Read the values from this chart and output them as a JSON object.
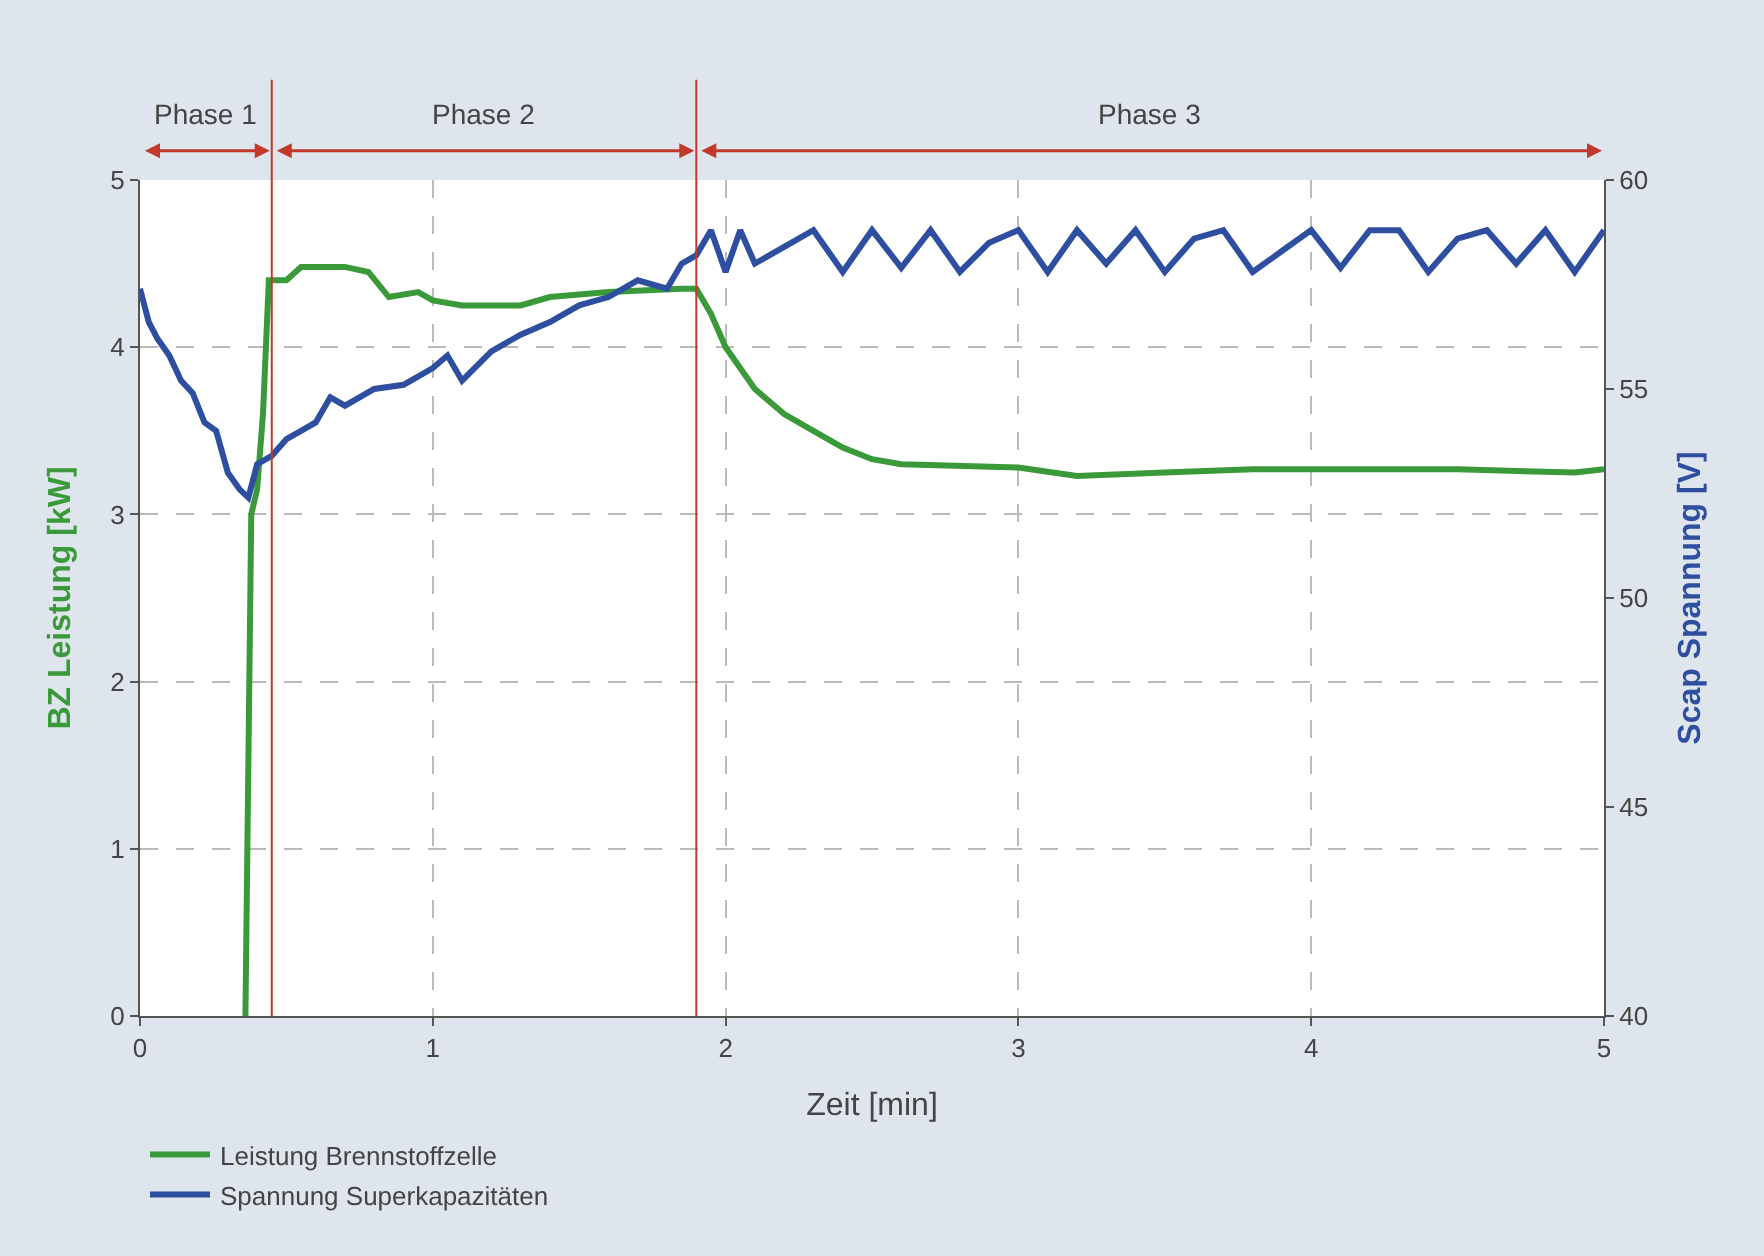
{
  "chart_data": {
    "type": "line",
    "xlabel": "Zeit [min]",
    "ylabel": "BZ Leistung [kW]",
    "y2label": "Scap Spannung [V]",
    "xlim": [
      0,
      5
    ],
    "xticks": [
      0,
      1,
      2,
      3,
      4,
      5
    ],
    "ylim": [
      0,
      5
    ],
    "yticks": [
      0,
      1,
      2,
      3,
      4,
      5
    ],
    "y2lim": [
      40,
      60
    ],
    "y2ticks": [
      40,
      45,
      50,
      55,
      60
    ],
    "grid": true,
    "legend": "bottom left",
    "line_style": "solid",
    "marker": "none",
    "series": [
      {
        "name": "Leistung Brennstoffzelle",
        "color": "#3a9a3a",
        "x": [
          0.36,
          0.37,
          0.38,
          0.4,
          0.42,
          0.44,
          0.5,
          0.55,
          0.7,
          0.78,
          0.85,
          0.95,
          1.0,
          1.1,
          1.3,
          1.4,
          1.6,
          1.85,
          1.9,
          1.95,
          2.0,
          2.1,
          2.2,
          2.3,
          2.4,
          2.5,
          2.6,
          3.0,
          3.2,
          3.5,
          3.8,
          4.0,
          4.5,
          4.9,
          5.0
        ],
        "values": [
          0,
          1.5,
          3.0,
          3.15,
          3.6,
          4.4,
          4.4,
          4.48,
          4.48,
          4.45,
          4.3,
          4.33,
          4.28,
          4.25,
          4.25,
          4.3,
          4.33,
          4.35,
          4.35,
          4.2,
          4.0,
          3.75,
          3.6,
          3.5,
          3.4,
          3.33,
          3.3,
          3.28,
          3.23,
          3.25,
          3.27,
          3.27,
          3.27,
          3.25,
          3.27
        ]
      },
      {
        "name": "Spannung Superkapazitäten",
        "color": "#2e4fa0",
        "axis": "y2",
        "x": [
          0,
          0.03,
          0.06,
          0.1,
          0.14,
          0.18,
          0.22,
          0.26,
          0.3,
          0.34,
          0.37,
          0.4,
          0.45,
          0.5,
          0.55,
          0.6,
          0.65,
          0.7,
          0.8,
          0.9,
          1.0,
          1.05,
          1.1,
          1.2,
          1.3,
          1.4,
          1.5,
          1.6,
          1.7,
          1.8,
          1.85,
          1.9,
          1.95,
          2.0,
          2.05,
          2.1,
          2.2,
          2.3,
          2.4,
          2.5,
          2.6,
          2.7,
          2.8,
          2.9,
          3.0,
          3.1,
          3.2,
          3.3,
          3.4,
          3.5,
          3.6,
          3.7,
          3.8,
          3.9,
          4.0,
          4.1,
          4.2,
          4.3,
          4.4,
          4.5,
          4.6,
          4.7,
          4.8,
          4.9,
          5.0
        ],
        "values": [
          57.4,
          56.6,
          56.2,
          55.8,
          55.2,
          54.9,
          54.2,
          54.0,
          53.0,
          52.6,
          52.4,
          53.2,
          53.4,
          53.8,
          54.0,
          54.2,
          54.8,
          54.6,
          55.0,
          55.1,
          55.5,
          55.8,
          55.2,
          55.9,
          56.3,
          56.6,
          57.0,
          57.2,
          57.6,
          57.4,
          58.0,
          58.2,
          58.8,
          57.8,
          58.8,
          58.0,
          58.4,
          58.8,
          57.8,
          58.8,
          57.9,
          58.8,
          57.8,
          58.5,
          58.8,
          57.8,
          58.8,
          58.0,
          58.8,
          57.8,
          58.6,
          58.8,
          57.8,
          58.3,
          58.8,
          57.9,
          58.8,
          58.8,
          57.8,
          58.6,
          58.8,
          58.0,
          58.8,
          57.8,
          58.8
        ]
      }
    ],
    "ref_lines": [
      {
        "axis": "x",
        "value": 0.45,
        "color": "#c0392b"
      },
      {
        "axis": "x",
        "value": 1.9,
        "color": "#c0392b"
      }
    ],
    "annotations": [
      "Phase 1",
      "Phase 2",
      "Phase 3"
    ]
  }
}
